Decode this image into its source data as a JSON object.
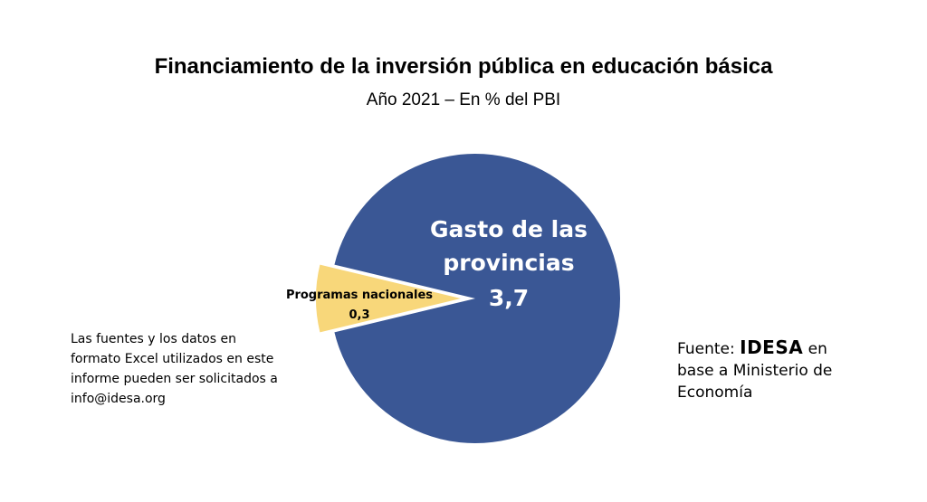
{
  "chart_data": {
    "type": "pie",
    "title": "Financiamiento de la inversión pública en educación básica",
    "subtitle": "Año 2021 – En % del PBI",
    "slices": [
      {
        "label_lines": [
          "Gasto de las",
          "provincias"
        ],
        "value": 3.7,
        "value_label": "3,7",
        "color": "#3a5795",
        "label_color": "#ffffff"
      },
      {
        "label_lines": [
          "Programas nacionales"
        ],
        "value": 0.3,
        "value_label": "0,3",
        "color": "#f8d77a",
        "label_color": "#000000"
      }
    ]
  },
  "notes": {
    "left": "Las fuentes y los datos en formato Excel utilizados en este informe pueden ser solicitados a info@idesa.org",
    "right_prefix": "Fuente: ",
    "right_brand": "IDESA",
    "right_suffix": " en base a Ministerio de Economía"
  }
}
